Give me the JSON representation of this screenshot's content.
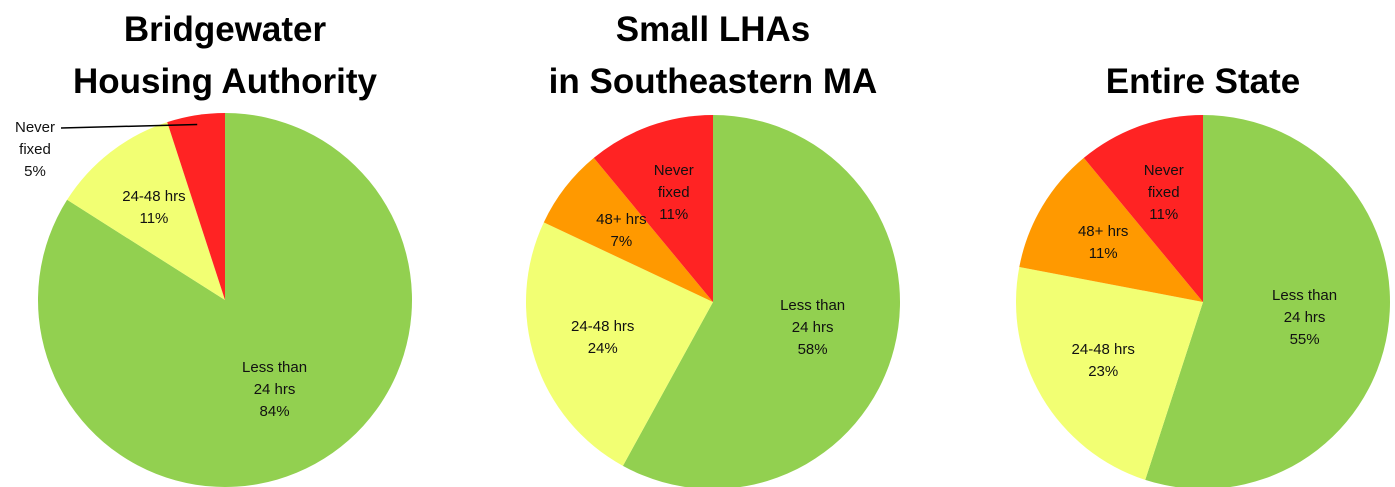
{
  "chart_data": [
    {
      "type": "pie",
      "title": [
        "Bridgewater",
        "Housing Authority"
      ],
      "categories": [
        "Less than 24 hrs",
        "24-48 hrs",
        "Never fixed"
      ],
      "values": [
        84,
        11,
        5
      ],
      "value_labels": [
        "84%",
        "11%",
        "5%"
      ],
      "colors": [
        "#92d050",
        "#f2ff73",
        "#ff2323"
      ]
    },
    {
      "type": "pie",
      "title": [
        "Small LHAs",
        "in Southeastern MA"
      ],
      "categories": [
        "Less than 24 hrs",
        "24-48 hrs",
        "48+ hrs",
        "Never fixed"
      ],
      "values": [
        58,
        24,
        7,
        11
      ],
      "value_labels": [
        "58%",
        "24%",
        "7%",
        "11%"
      ],
      "colors": [
        "#92d050",
        "#f2ff73",
        "#ff9900",
        "#ff2323"
      ]
    },
    {
      "type": "pie",
      "title": [
        "Entire State"
      ],
      "categories": [
        "Less than 24 hrs",
        "24-48 hrs",
        "48+ hrs",
        "Never fixed"
      ],
      "values": [
        55,
        23,
        11,
        11
      ],
      "value_labels": [
        "55%",
        "23%",
        "11%",
        "11%"
      ],
      "colors": [
        "#92d050",
        "#f2ff73",
        "#ff9900",
        "#ff2323"
      ]
    }
  ]
}
